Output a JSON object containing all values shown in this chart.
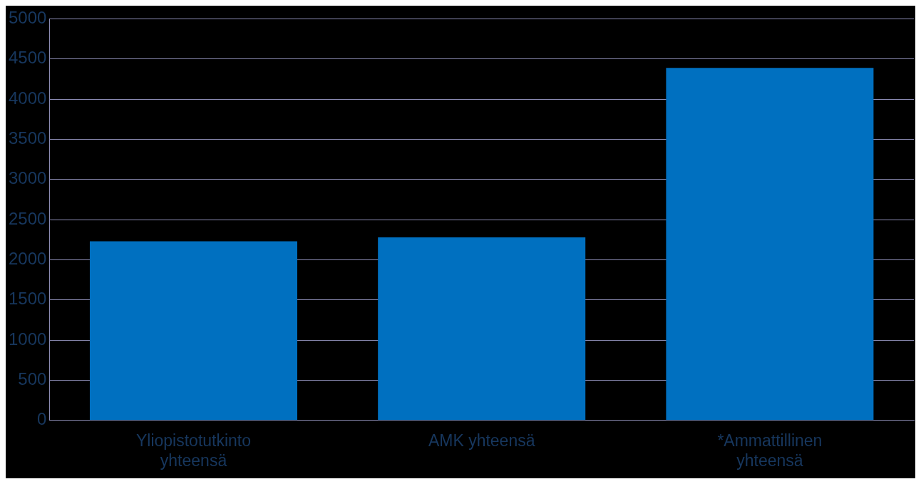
{
  "chart_data": {
    "type": "bar",
    "categories": [
      "Yliopistotutkinto yhteensä",
      "AMK yhteensä",
      "*Ammattillinen yhteensä"
    ],
    "values": [
      2230,
      2280,
      4390
    ],
    "color": "#0070c0",
    "ylim": [
      0,
      5000
    ],
    "yticks": [
      0,
      500,
      1000,
      1500,
      2000,
      2500,
      3000,
      3500,
      4000,
      4500,
      5000
    ],
    "grid": "y",
    "legend": false
  }
}
